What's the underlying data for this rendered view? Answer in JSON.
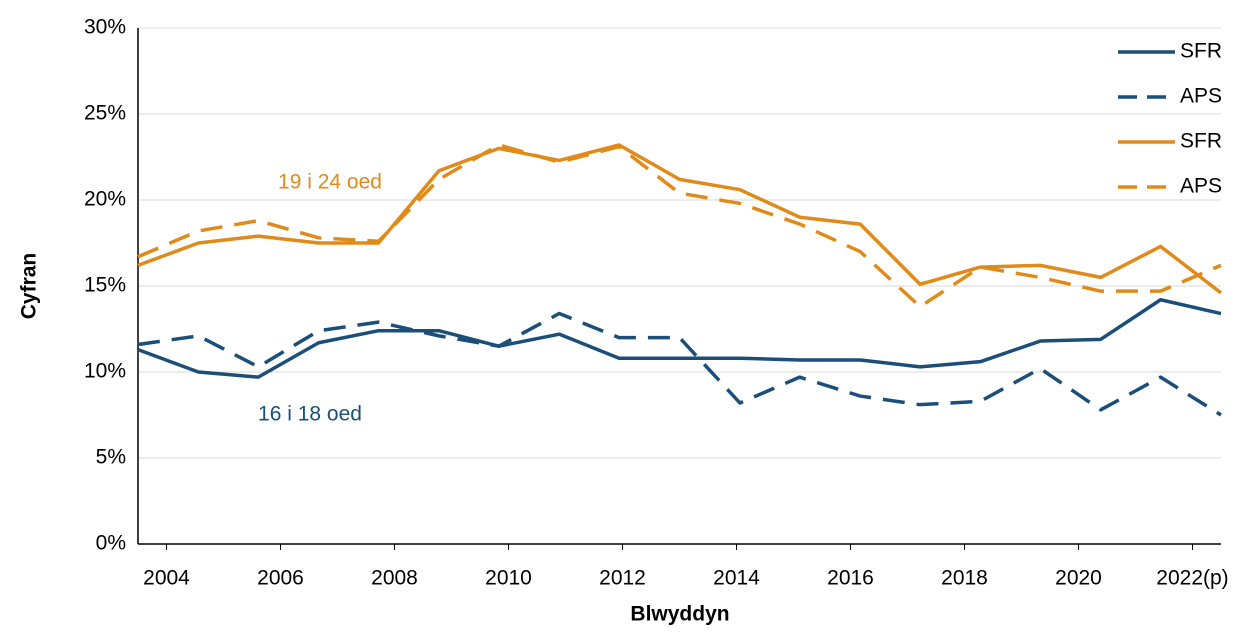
{
  "chart_data": {
    "type": "line",
    "x_label": "Blwyddyn",
    "y_label": "Cyfran",
    "x": [
      2003.5,
      2004.56,
      2005.61,
      2006.67,
      2007.72,
      2008.78,
      2009.83,
      2010.89,
      2011.94,
      2013.0,
      2014.06,
      2015.11,
      2016.17,
      2017.22,
      2018.28,
      2019.33,
      2020.39,
      2021.44,
      2022.5
    ],
    "series": [
      {
        "name": "SFR",
        "color": "#1b4f7a",
        "dashed": false,
        "values": [
          11.3,
          10.0,
          9.7,
          11.7,
          12.4,
          12.4,
          11.5,
          12.2,
          10.8,
          10.8,
          10.8,
          10.7,
          10.7,
          10.3,
          10.6,
          11.8,
          11.9,
          14.2,
          13.4
        ]
      },
      {
        "name": "APS",
        "color": "#1b4f7a",
        "dashed": true,
        "values": [
          11.6,
          12.1,
          10.3,
          12.4,
          12.9,
          12.1,
          11.5,
          13.4,
          12.0,
          12.0,
          8.2,
          9.7,
          8.6,
          8.1,
          8.3,
          10.2,
          7.8,
          9.7,
          7.5
        ]
      },
      {
        "name": "SFR",
        "color": "#e08a1a",
        "dashed": false,
        "values": [
          16.2,
          17.5,
          17.9,
          17.5,
          17.5,
          21.7,
          23.0,
          22.3,
          23.2,
          21.2,
          20.6,
          19.0,
          18.6,
          15.1,
          16.1,
          16.2,
          15.5,
          17.3,
          14.6
        ]
      },
      {
        "name": "APS",
        "color": "#e08a1a",
        "dashed": true,
        "values": [
          16.7,
          18.2,
          18.8,
          17.8,
          17.6,
          21.2,
          23.2,
          22.2,
          23.1,
          20.4,
          19.8,
          18.6,
          17.0,
          13.8,
          16.1,
          15.5,
          14.7,
          14.7,
          16.2
        ]
      }
    ],
    "annotations": [
      {
        "text": "19 i 24 oed",
        "color": "#e08a1a"
      },
      {
        "text": "16 i 18 oed",
        "color": "#1b4f7a"
      }
    ],
    "xlim": [
      2003.5,
      2022.5
    ],
    "xticks": [
      2004,
      2006,
      2008,
      2010,
      2012,
      2014,
      2016,
      2018,
      2020,
      {
        "value": 2022,
        "label": "2022(p)"
      }
    ],
    "ylim": [
      0,
      30
    ],
    "yticks": [
      {
        "value": 0,
        "label": "0%"
      },
      {
        "value": 5,
        "label": "5%"
      },
      {
        "value": 10,
        "label": "10%"
      },
      {
        "value": 15,
        "label": "15%"
      },
      {
        "value": 20,
        "label": "20%"
      },
      {
        "value": 25,
        "label": "25%"
      },
      {
        "value": 30,
        "label": "30%"
      }
    ],
    "grid": true,
    "legend": "top-right"
  }
}
